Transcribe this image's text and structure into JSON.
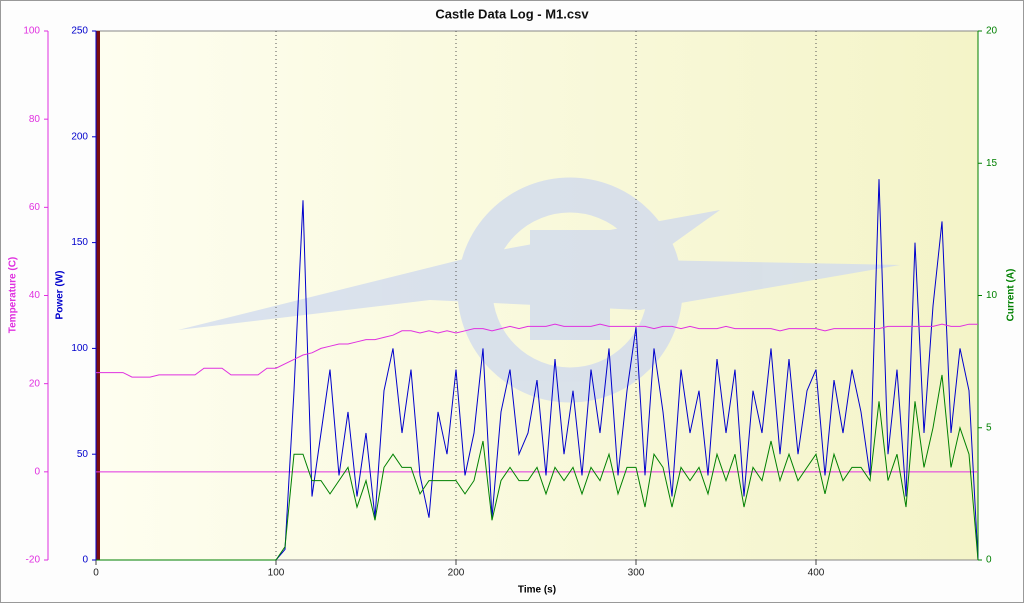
{
  "chart_data": {
    "type": "line",
    "title": "Castle Data Log - M1.csv",
    "xlabel": "Time (s)",
    "ylabel": "Power (W)",
    "y2label": "Current (A)",
    "y3label": "Temperature (C)",
    "xlim": [
      0,
      490
    ],
    "xticks": [
      0,
      100,
      200,
      300,
      400
    ],
    "ylim": [
      0,
      250
    ],
    "yticks": [
      0,
      50,
      100,
      150,
      200,
      250
    ],
    "y2lim": [
      0,
      20
    ],
    "y2ticks": [
      0,
      5,
      10,
      15,
      20
    ],
    "y3lim": [
      -20,
      100
    ],
    "y3ticks": [
      -20,
      0,
      20,
      40,
      60,
      80,
      100
    ],
    "x": [
      0,
      5,
      10,
      15,
      20,
      25,
      30,
      35,
      40,
      45,
      50,
      55,
      60,
      65,
      70,
      75,
      80,
      85,
      90,
      95,
      100,
      105,
      110,
      115,
      120,
      125,
      130,
      135,
      140,
      145,
      150,
      155,
      160,
      165,
      170,
      175,
      180,
      185,
      190,
      195,
      200,
      205,
      210,
      215,
      220,
      225,
      230,
      235,
      240,
      245,
      250,
      255,
      260,
      265,
      270,
      275,
      280,
      285,
      290,
      295,
      300,
      305,
      310,
      315,
      320,
      325,
      330,
      335,
      340,
      345,
      350,
      355,
      360,
      365,
      370,
      375,
      380,
      385,
      390,
      395,
      400,
      405,
      410,
      415,
      420,
      425,
      430,
      435,
      440,
      445,
      450,
      455,
      460,
      465,
      470,
      475,
      480,
      485,
      490
    ],
    "series": [
      {
        "name": "Temperature (C)",
        "color": "#e030e0",
        "axis": "y3",
        "values": [
          22.5,
          22.5,
          22.5,
          22.5,
          21.5,
          21.5,
          21.5,
          22,
          22,
          22,
          22,
          22,
          23.5,
          23.5,
          23.5,
          22,
          22,
          22,
          22,
          23.5,
          23.5,
          24.5,
          25.5,
          26.5,
          27,
          28,
          28.5,
          29,
          29,
          29.5,
          30,
          30,
          30.5,
          31,
          32,
          32,
          31.5,
          32,
          31.5,
          32,
          31.5,
          32,
          32.5,
          32.5,
          32,
          32.5,
          33,
          32.5,
          33,
          33,
          33,
          33.5,
          33,
          33,
          33,
          33,
          33.5,
          33,
          33,
          33,
          33,
          33,
          32.5,
          33,
          33,
          32.5,
          33,
          32.5,
          32.5,
          32.5,
          33,
          32.5,
          32.5,
          32.5,
          32.5,
          32.5,
          32,
          32.5,
          32.5,
          32.5,
          32.5,
          32,
          32.5,
          32.5,
          32.5,
          32.5,
          32.5,
          32.5,
          33,
          33,
          33,
          33,
          33,
          33,
          33.5,
          33,
          33,
          33.5,
          33.5
        ]
      },
      {
        "name": "Power (W)",
        "color": "#0000cc",
        "axis": "y",
        "values": [
          0,
          0,
          0,
          0,
          0,
          0,
          0,
          0,
          0,
          0,
          0,
          0,
          0,
          0,
          0,
          0,
          0,
          0,
          0,
          0,
          0,
          5,
          80,
          170,
          30,
          60,
          90,
          40,
          70,
          30,
          60,
          20,
          80,
          100,
          60,
          90,
          40,
          20,
          70,
          50,
          90,
          40,
          60,
          100,
          20,
          70,
          90,
          50,
          60,
          85,
          40,
          95,
          50,
          80,
          40,
          90,
          60,
          100,
          40,
          80,
          110,
          40,
          100,
          70,
          30,
          90,
          60,
          80,
          40,
          95,
          60,
          90,
          30,
          80,
          60,
          100,
          50,
          95,
          50,
          80,
          90,
          40,
          85,
          60,
          90,
          70,
          40,
          180,
          50,
          90,
          30,
          150,
          60,
          120,
          160,
          60,
          100,
          80,
          0
        ]
      },
      {
        "name": "Current (A)",
        "color": "#008000",
        "axis": "y2",
        "values": [
          0,
          0,
          0,
          0,
          0,
          0,
          0,
          0,
          0,
          0,
          0,
          0,
          0,
          0,
          0,
          0,
          0,
          0,
          0,
          0,
          0,
          0.5,
          4,
          4,
          3,
          3,
          2.5,
          3,
          3.5,
          2,
          3,
          1.5,
          3.5,
          4,
          3.5,
          3.5,
          2.5,
          3,
          3,
          3,
          3,
          2.5,
          3,
          4.5,
          1.5,
          3,
          3.5,
          3,
          3,
          3.5,
          2.5,
          3.5,
          3,
          3.5,
          2.5,
          3.5,
          3,
          4,
          2.5,
          3.5,
          3.5,
          2,
          4,
          3.5,
          2,
          3.5,
          3,
          3.5,
          2.5,
          4,
          3,
          4,
          2,
          3.5,
          3,
          4.5,
          3,
          4,
          3,
          3.5,
          4,
          2.5,
          4,
          3,
          3.5,
          3.5,
          3,
          6,
          3,
          4,
          2,
          6,
          3.5,
          5,
          7,
          3.5,
          5,
          4,
          0
        ]
      }
    ]
  }
}
